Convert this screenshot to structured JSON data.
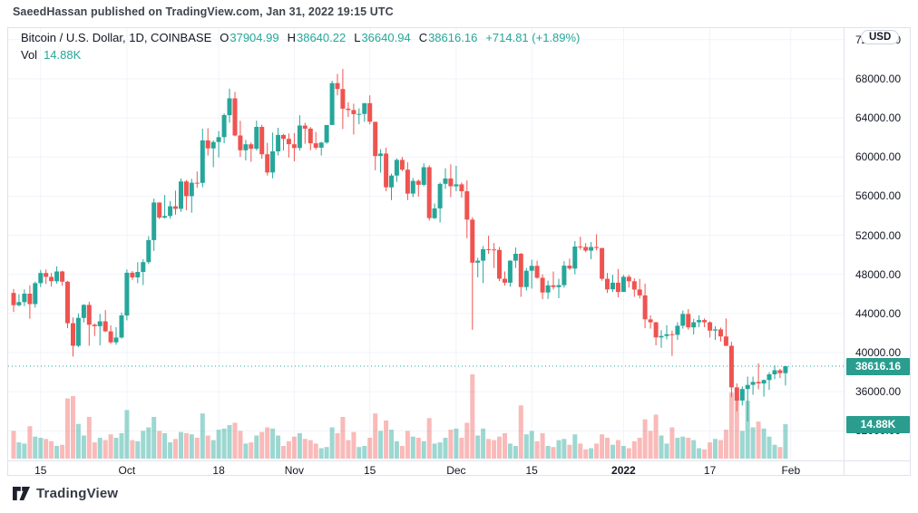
{
  "attribution": "SaeedHassan published on TradingView.com, Jan 31, 2022 19:15 UTC",
  "legend": {
    "symbol": "Bitcoin / U.S. Dollar, 1D, COINBASE",
    "o_label": "O",
    "open": "37904.99",
    "h_label": "H",
    "high": "38640.22",
    "l_label": "L",
    "low": "36640.94",
    "c_label": "C",
    "close": "38616.16",
    "change": "+714.81 (+1.89%)",
    "vol_label": "Vol",
    "vol_value": "14.88K"
  },
  "badges": {
    "price": "38616.16",
    "volume": "14.88K"
  },
  "price_axis": {
    "currency": "USD",
    "tick_values": [
      72000,
      68000,
      64000,
      60000,
      56000,
      52000,
      48000,
      44000,
      40000,
      36000,
      32000
    ]
  },
  "time_axis": {
    "ticks": [
      {
        "label": "15",
        "index": 5,
        "bold": false
      },
      {
        "label": "Oct",
        "index": 21,
        "bold": false
      },
      {
        "label": "18",
        "index": 38,
        "bold": false
      },
      {
        "label": "Nov",
        "index": 52,
        "bold": false
      },
      {
        "label": "15",
        "index": 66,
        "bold": false
      },
      {
        "label": "Dec",
        "index": 82,
        "bold": false
      },
      {
        "label": "15",
        "index": 96,
        "bold": false
      },
      {
        "label": "2022",
        "index": 113,
        "bold": true
      },
      {
        "label": "17",
        "index": 129,
        "bold": false
      },
      {
        "label": "Feb",
        "index": 144,
        "bold": false
      }
    ]
  },
  "footer": {
    "logo_text": "TradingView"
  },
  "colors": {
    "up": "#26a69a",
    "down": "#ef5350",
    "volume_up": "rgba(38,166,154,0.45)",
    "volume_down": "rgba(239,83,80,0.40)",
    "grid": "#f0f3fa",
    "border": "#e0e3eb",
    "badge": "#2a9d8f",
    "price_line": "#26a69a",
    "text": "#131722"
  },
  "chart_data": {
    "type": "candlestick+volume",
    "title": "Bitcoin / U.S. Dollar, 1D, COINBASE",
    "legend_position": "top-left",
    "grid": true,
    "price_line_value": 38616.16,
    "last_volume_K": 14.88,
    "y_axis": {
      "unit": "USD",
      "min": 32000,
      "max": 72000,
      "step": 4000
    },
    "x_range": [
      "Sep 10, 2021",
      "Jan 31, 2022"
    ],
    "columns": [
      "date",
      "open",
      "high",
      "low",
      "close",
      "volume_K"
    ],
    "candles": [
      [
        "Sep 10",
        46100,
        46500,
        44150,
        44850,
        12.0
      ],
      [
        "Sep 11",
        44850,
        45980,
        44720,
        45170,
        7.0
      ],
      [
        "Sep 12",
        45170,
        46460,
        44750,
        46030,
        6.5
      ],
      [
        "Sep 13",
        46030,
        46880,
        43470,
        44960,
        14.0
      ],
      [
        "Sep 14",
        44960,
        47250,
        44600,
        47100,
        9.5
      ],
      [
        "Sep 15",
        47100,
        48450,
        46700,
        48140,
        9.0
      ],
      [
        "Sep 16",
        48140,
        48500,
        47020,
        47740,
        8.5
      ],
      [
        "Sep 17",
        47740,
        48150,
        46750,
        47300,
        7.5
      ],
      [
        "Sep 18",
        47300,
        48820,
        47050,
        48300,
        5.5
      ],
      [
        "Sep 19",
        48300,
        48370,
        46820,
        47250,
        6.0
      ],
      [
        "Sep 20",
        47250,
        47330,
        42500,
        43010,
        26.0
      ],
      [
        "Sep 21",
        43010,
        43600,
        39600,
        40700,
        27.0
      ],
      [
        "Sep 22",
        40700,
        44000,
        40550,
        43550,
        15.0
      ],
      [
        "Sep 23",
        43550,
        44950,
        43080,
        44880,
        10.0
      ],
      [
        "Sep 24",
        44880,
        45200,
        40700,
        42850,
        18.0
      ],
      [
        "Sep 25",
        42850,
        42990,
        41700,
        42700,
        7.0
      ],
      [
        "Sep 26",
        42700,
        43950,
        40750,
        43200,
        9.0
      ],
      [
        "Sep 27",
        43200,
        44350,
        42100,
        42170,
        8.0
      ],
      [
        "Sep 28",
        42170,
        42790,
        40900,
        41050,
        10.5
      ],
      [
        "Sep 29",
        41050,
        42600,
        40800,
        41540,
        9.0
      ],
      [
        "Sep 30",
        41540,
        44100,
        41430,
        43800,
        11.0
      ],
      [
        "Oct 1",
        43800,
        48500,
        43300,
        48170,
        21.0
      ],
      [
        "Oct 2",
        48170,
        48340,
        47450,
        47690,
        8.0
      ],
      [
        "Oct 3",
        47690,
        49250,
        47100,
        48250,
        7.5
      ],
      [
        "Oct 4",
        48250,
        49550,
        46900,
        49250,
        12.0
      ],
      [
        "Oct 5",
        49250,
        51900,
        49050,
        51500,
        13.5
      ],
      [
        "Oct 6",
        51500,
        55750,
        50400,
        55350,
        18.0
      ],
      [
        "Oct 7",
        55350,
        55350,
        53650,
        53800,
        12.0
      ],
      [
        "Oct 8",
        53800,
        56100,
        53700,
        53970,
        11.0
      ],
      [
        "Oct 9",
        53970,
        55500,
        53700,
        54960,
        7.0
      ],
      [
        "Oct 10",
        54960,
        56550,
        54100,
        54700,
        8.5
      ],
      [
        "Oct 11",
        54700,
        57800,
        54400,
        57500,
        11.5
      ],
      [
        "Oct 12",
        57500,
        57650,
        54550,
        56000,
        11.0
      ],
      [
        "Oct 13",
        56000,
        57780,
        54300,
        57370,
        10.5
      ],
      [
        "Oct 14",
        57370,
        58520,
        56850,
        57350,
        9.0
      ],
      [
        "Oct 15",
        57350,
        62900,
        56900,
        61700,
        19.5
      ],
      [
        "Oct 16",
        61700,
        62950,
        60150,
        60880,
        10.0
      ],
      [
        "Oct 17",
        60880,
        61700,
        58950,
        61530,
        8.0
      ],
      [
        "Oct 18",
        61530,
        62650,
        59950,
        62030,
        12.5
      ],
      [
        "Oct 19",
        62030,
        64450,
        61400,
        64280,
        13.0
      ],
      [
        "Oct 20",
        64280,
        67000,
        63500,
        66000,
        14.5
      ],
      [
        "Oct 21",
        66000,
        66650,
        62100,
        62200,
        15.5
      ],
      [
        "Oct 22",
        62200,
        63700,
        60000,
        60690,
        12.0
      ],
      [
        "Oct 23",
        60690,
        61750,
        59650,
        61300,
        6.5
      ],
      [
        "Oct 24",
        61300,
        61500,
        59510,
        60850,
        7.0
      ],
      [
        "Oct 25",
        60850,
        63720,
        60650,
        63080,
        10.0
      ],
      [
        "Oct 26",
        63080,
        63290,
        59820,
        60280,
        11.5
      ],
      [
        "Oct 27",
        60280,
        61450,
        58100,
        58420,
        13.5
      ],
      [
        "Oct 28",
        58420,
        62500,
        57820,
        60575,
        13.0
      ],
      [
        "Oct 29",
        60575,
        62980,
        60170,
        62250,
        10.0
      ],
      [
        "Oct 30",
        62250,
        62360,
        60670,
        61850,
        5.5
      ],
      [
        "Oct 31",
        61850,
        62400,
        59945,
        61300,
        7.5
      ],
      [
        "Nov 1",
        61300,
        62450,
        59560,
        60920,
        9.5
      ],
      [
        "Nov 2",
        60920,
        64270,
        60650,
        63220,
        11.0
      ],
      [
        "Nov 3",
        63220,
        63500,
        61350,
        62900,
        8.5
      ],
      [
        "Nov 4",
        62900,
        63070,
        60700,
        61400,
        8.0
      ],
      [
        "Nov 5",
        61400,
        62550,
        60750,
        60950,
        6.5
      ],
      [
        "Nov 6",
        60950,
        61550,
        60150,
        61470,
        4.5
      ],
      [
        "Nov 7",
        61470,
        63250,
        61350,
        63270,
        5.0
      ],
      [
        "Nov 8",
        63270,
        67800,
        63270,
        67550,
        13.5
      ],
      [
        "Nov 9",
        67550,
        68500,
        66300,
        66950,
        11.0
      ],
      [
        "Nov 10",
        66950,
        69000,
        62850,
        64940,
        18.0
      ],
      [
        "Nov 11",
        64940,
        65600,
        64100,
        64800,
        8.0
      ],
      [
        "Nov 12",
        64800,
        65450,
        62300,
        64380,
        11.5
      ],
      [
        "Nov 13",
        64380,
        64980,
        63350,
        64400,
        5.0
      ],
      [
        "Nov 14",
        64400,
        65500,
        63600,
        65500,
        5.5
      ],
      [
        "Nov 15",
        65500,
        66300,
        63350,
        63600,
        9.0
      ],
      [
        "Nov 16",
        63600,
        63600,
        58650,
        60100,
        19.5
      ],
      [
        "Nov 17",
        60100,
        60800,
        58400,
        60350,
        12.0
      ],
      [
        "Nov 18",
        60350,
        60950,
        56500,
        56900,
        16.5
      ],
      [
        "Nov 19",
        56900,
        58300,
        55600,
        58100,
        12.5
      ],
      [
        "Nov 20",
        58100,
        59850,
        57450,
        59700,
        7.5
      ],
      [
        "Nov 21",
        59700,
        60000,
        58550,
        58700,
        5.5
      ],
      [
        "Nov 22",
        58700,
        59450,
        55600,
        56250,
        12.0
      ],
      [
        "Nov 23",
        56250,
        57850,
        55900,
        57550,
        9.5
      ],
      [
        "Nov 24",
        57550,
        57700,
        55950,
        57150,
        9.0
      ],
      [
        "Nov 25",
        57150,
        59350,
        57000,
        58950,
        7.5
      ],
      [
        "Nov 26",
        58950,
        59150,
        53500,
        53750,
        17.5
      ],
      [
        "Nov 27",
        53750,
        55250,
        53650,
        54750,
        6.5
      ],
      [
        "Nov 28",
        54750,
        57400,
        53300,
        57250,
        7.0
      ],
      [
        "Nov 29",
        57250,
        58850,
        56750,
        57800,
        9.0
      ],
      [
        "Nov 30",
        57800,
        59250,
        55900,
        57000,
        12.5
      ],
      [
        "Dec 1",
        57000,
        59100,
        56500,
        57200,
        13.0
      ],
      [
        "Dec 2",
        57200,
        57400,
        55850,
        56500,
        9.0
      ],
      [
        "Dec 3",
        56500,
        57600,
        51700,
        53600,
        15.5
      ],
      [
        "Dec 4",
        53600,
        53850,
        42330,
        49200,
        36.4
      ],
      [
        "Dec 5",
        49200,
        49700,
        47700,
        49400,
        10.0
      ],
      [
        "Dec 6",
        49400,
        50900,
        47100,
        50580,
        13.0
      ],
      [
        "Dec 7",
        50580,
        51950,
        50100,
        50550,
        8.5
      ],
      [
        "Dec 8",
        50550,
        51200,
        48650,
        50500,
        8.0
      ],
      [
        "Dec 9",
        50500,
        50800,
        47320,
        47550,
        9.5
      ],
      [
        "Dec 10",
        47550,
        48300,
        46850,
        47150,
        11.0
      ],
      [
        "Dec 11",
        47150,
        49450,
        46750,
        49400,
        6.5
      ],
      [
        "Dec 12",
        49400,
        50750,
        48650,
        50100,
        5.5
      ],
      [
        "Dec 13",
        50100,
        50200,
        45700,
        46700,
        23.0
      ],
      [
        "Dec 14",
        46700,
        48650,
        46350,
        48370,
        10.5
      ],
      [
        "Dec 15",
        48370,
        49500,
        46550,
        48870,
        12.0
      ],
      [
        "Dec 16",
        48870,
        49400,
        47550,
        47650,
        7.5
      ],
      [
        "Dec 17",
        47650,
        48000,
        45460,
        46150,
        11.0
      ],
      [
        "Dec 18",
        46150,
        47350,
        45500,
        46880,
        5.5
      ],
      [
        "Dec 19",
        46880,
        48300,
        46450,
        46700,
        5.0
      ],
      [
        "Dec 20",
        46700,
        47550,
        45560,
        46900,
        8.0
      ],
      [
        "Dec 21",
        46900,
        49350,
        46650,
        48890,
        8.5
      ],
      [
        "Dec 22",
        48890,
        49600,
        48450,
        48600,
        6.0
      ],
      [
        "Dec 23",
        48600,
        51400,
        48000,
        50850,
        10.5
      ],
      [
        "Dec 24",
        50850,
        51850,
        50500,
        50800,
        6.5
      ],
      [
        "Dec 25",
        50800,
        51200,
        50250,
        50430,
        4.0
      ],
      [
        "Dec 26",
        50430,
        51300,
        49550,
        50800,
        4.5
      ],
      [
        "Dec 27",
        50800,
        52100,
        50450,
        50700,
        6.5
      ],
      [
        "Dec 28",
        50700,
        50700,
        47350,
        47550,
        10.5
      ],
      [
        "Dec 29",
        47550,
        48150,
        46100,
        46470,
        9.0
      ],
      [
        "Dec 30",
        46470,
        47950,
        46200,
        47150,
        6.0
      ],
      [
        "Dec 31",
        47150,
        48550,
        45650,
        46200,
        8.0
      ],
      [
        "Jan 1",
        46200,
        47950,
        46200,
        47750,
        5.5
      ],
      [
        "Jan 2",
        47750,
        47950,
        46650,
        47300,
        4.5
      ],
      [
        "Jan 3",
        47300,
        47600,
        45700,
        46450,
        7.5
      ],
      [
        "Jan 4",
        46450,
        47550,
        45550,
        45850,
        9.0
      ],
      [
        "Jan 5",
        45850,
        47050,
        42500,
        43400,
        17.0
      ],
      [
        "Jan 6",
        43400,
        43800,
        42450,
        43100,
        12.0
      ],
      [
        "Jan 7",
        43100,
        43150,
        40750,
        41550,
        19.0
      ],
      [
        "Jan 8",
        41550,
        42300,
        40500,
        41700,
        10.0
      ],
      [
        "Jan 9",
        41700,
        42800,
        41350,
        41880,
        6.5
      ],
      [
        "Jan 10",
        41880,
        42250,
        39650,
        41820,
        13.5
      ],
      [
        "Jan 11",
        41820,
        43100,
        41300,
        42750,
        9.0
      ],
      [
        "Jan 12",
        42750,
        44300,
        42450,
        43950,
        9.5
      ],
      [
        "Jan 13",
        43950,
        44450,
        42350,
        42580,
        9.0
      ],
      [
        "Jan 14",
        42580,
        43450,
        41850,
        43100,
        8.0
      ],
      [
        "Jan 15",
        43100,
        43800,
        42600,
        43330,
        4.5
      ],
      [
        "Jan 16",
        43330,
        43500,
        42600,
        43100,
        4.0
      ],
      [
        "Jan 17",
        43100,
        43200,
        41550,
        42250,
        7.0
      ],
      [
        "Jan 18",
        42250,
        42700,
        41300,
        42375,
        8.5
      ],
      [
        "Jan 19",
        42375,
        42550,
        41150,
        41650,
        8.0
      ],
      [
        "Jan 20",
        41650,
        43500,
        40650,
        40700,
        12.5
      ],
      [
        "Jan 21",
        40700,
        41100,
        35450,
        36450,
        28.5
      ],
      [
        "Jan 22",
        36450,
        36850,
        34000,
        35100,
        27.0
      ],
      [
        "Jan 23",
        35100,
        36550,
        34600,
        36280,
        12.0
      ],
      [
        "Jan 24",
        36280,
        37550,
        32950,
        36700,
        25.0
      ],
      [
        "Jan 25",
        36700,
        37550,
        35700,
        37000,
        13.5
      ],
      [
        "Jan 26",
        37000,
        38900,
        36250,
        36850,
        16.0
      ],
      [
        "Jan 27",
        36850,
        37250,
        35500,
        37200,
        13.0
      ],
      [
        "Jan 28",
        37200,
        38000,
        36200,
        37780,
        9.5
      ],
      [
        "Jan 29",
        37780,
        38700,
        37300,
        38200,
        6.0
      ],
      [
        "Jan 30",
        38200,
        38350,
        37400,
        37900,
        5.0
      ],
      [
        "Jan 31",
        37904.99,
        38640.22,
        36640.94,
        38616.16,
        14.88
      ]
    ]
  }
}
